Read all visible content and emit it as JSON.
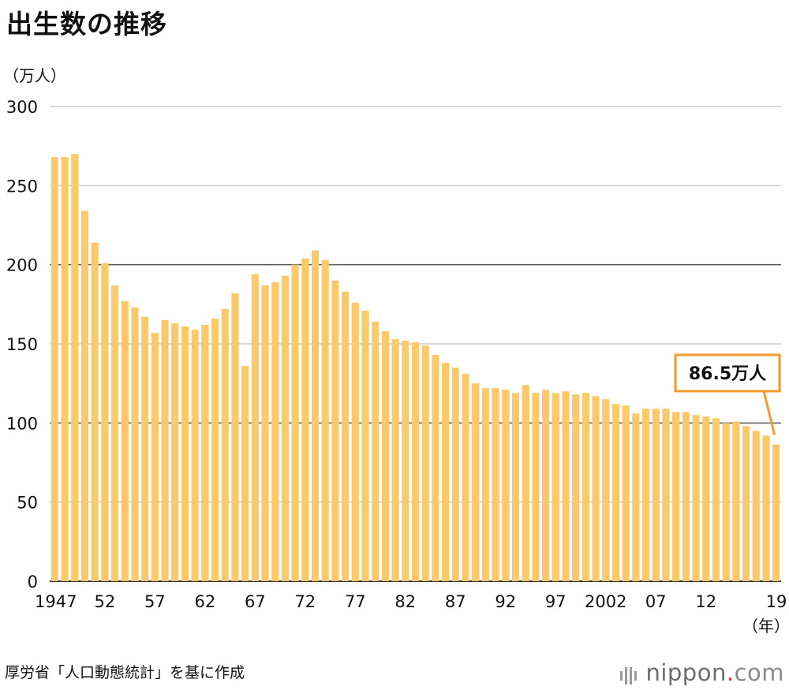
{
  "title": "出生数の推移",
  "unit_label": "（万人）",
  "x_unit_label": "（年）",
  "source": "厚労省「人口動態統計」を基に作成",
  "logo": {
    "name": "nippon",
    "dot": ".",
    "domain": "com"
  },
  "callout_text": "86.5万人",
  "colors": {
    "bar": "#fcc96a",
    "callout_border": "#f29a2e",
    "grid_light": "#cccccc",
    "grid_dark": "#555555",
    "logo_dot": "#e8331c"
  },
  "chart_data": {
    "type": "bar",
    "xlabel": "（年）",
    "ylabel": "（万人）",
    "ylim": [
      0,
      300
    ],
    "yticks": [
      0,
      50,
      100,
      150,
      200,
      250,
      300
    ],
    "grid": true,
    "categories": [
      1947,
      1948,
      1949,
      1950,
      1951,
      1952,
      1953,
      1954,
      1955,
      1956,
      1957,
      1958,
      1959,
      1960,
      1961,
      1962,
      1963,
      1964,
      1965,
      1966,
      1967,
      1968,
      1969,
      1970,
      1971,
      1972,
      1973,
      1974,
      1975,
      1976,
      1977,
      1978,
      1979,
      1980,
      1981,
      1982,
      1983,
      1984,
      1985,
      1986,
      1987,
      1988,
      1989,
      1990,
      1991,
      1992,
      1993,
      1994,
      1995,
      1996,
      1997,
      1998,
      1999,
      2000,
      2001,
      2002,
      2003,
      2004,
      2005,
      2006,
      2007,
      2008,
      2009,
      2010,
      2011,
      2012,
      2013,
      2014,
      2015,
      2016,
      2017,
      2018,
      2019
    ],
    "xtick_labels": [
      {
        "year": 1947,
        "label": "1947"
      },
      {
        "year": 1952,
        "label": "52"
      },
      {
        "year": 1957,
        "label": "57"
      },
      {
        "year": 1962,
        "label": "62"
      },
      {
        "year": 1967,
        "label": "67"
      },
      {
        "year": 1972,
        "label": "72"
      },
      {
        "year": 1977,
        "label": "77"
      },
      {
        "year": 1982,
        "label": "82"
      },
      {
        "year": 1987,
        "label": "87"
      },
      {
        "year": 1992,
        "label": "92"
      },
      {
        "year": 1997,
        "label": "97"
      },
      {
        "year": 2002,
        "label": "2002"
      },
      {
        "year": 2007,
        "label": "07"
      },
      {
        "year": 2012,
        "label": "12"
      },
      {
        "year": 2019,
        "label": "19"
      }
    ],
    "values": [
      268,
      268,
      270,
      234,
      214,
      201,
      187,
      177,
      173,
      167,
      157,
      165,
      163,
      161,
      159,
      162,
      166,
      172,
      182,
      136,
      194,
      187,
      189,
      193,
      200,
      204,
      209,
      203,
      190,
      183,
      176,
      171,
      164,
      158,
      153,
      152,
      151,
      149,
      143,
      138,
      135,
      131,
      125,
      122,
      122,
      121,
      119,
      124,
      119,
      121,
      119,
      120,
      118,
      119,
      117,
      115,
      112,
      111,
      106,
      109,
      109,
      109,
      107,
      107,
      105,
      104,
      103,
      100,
      101,
      98,
      95,
      92,
      86.5
    ],
    "annotation": {
      "category": 2019,
      "value": 86.5,
      "text": "86.5万人"
    }
  }
}
